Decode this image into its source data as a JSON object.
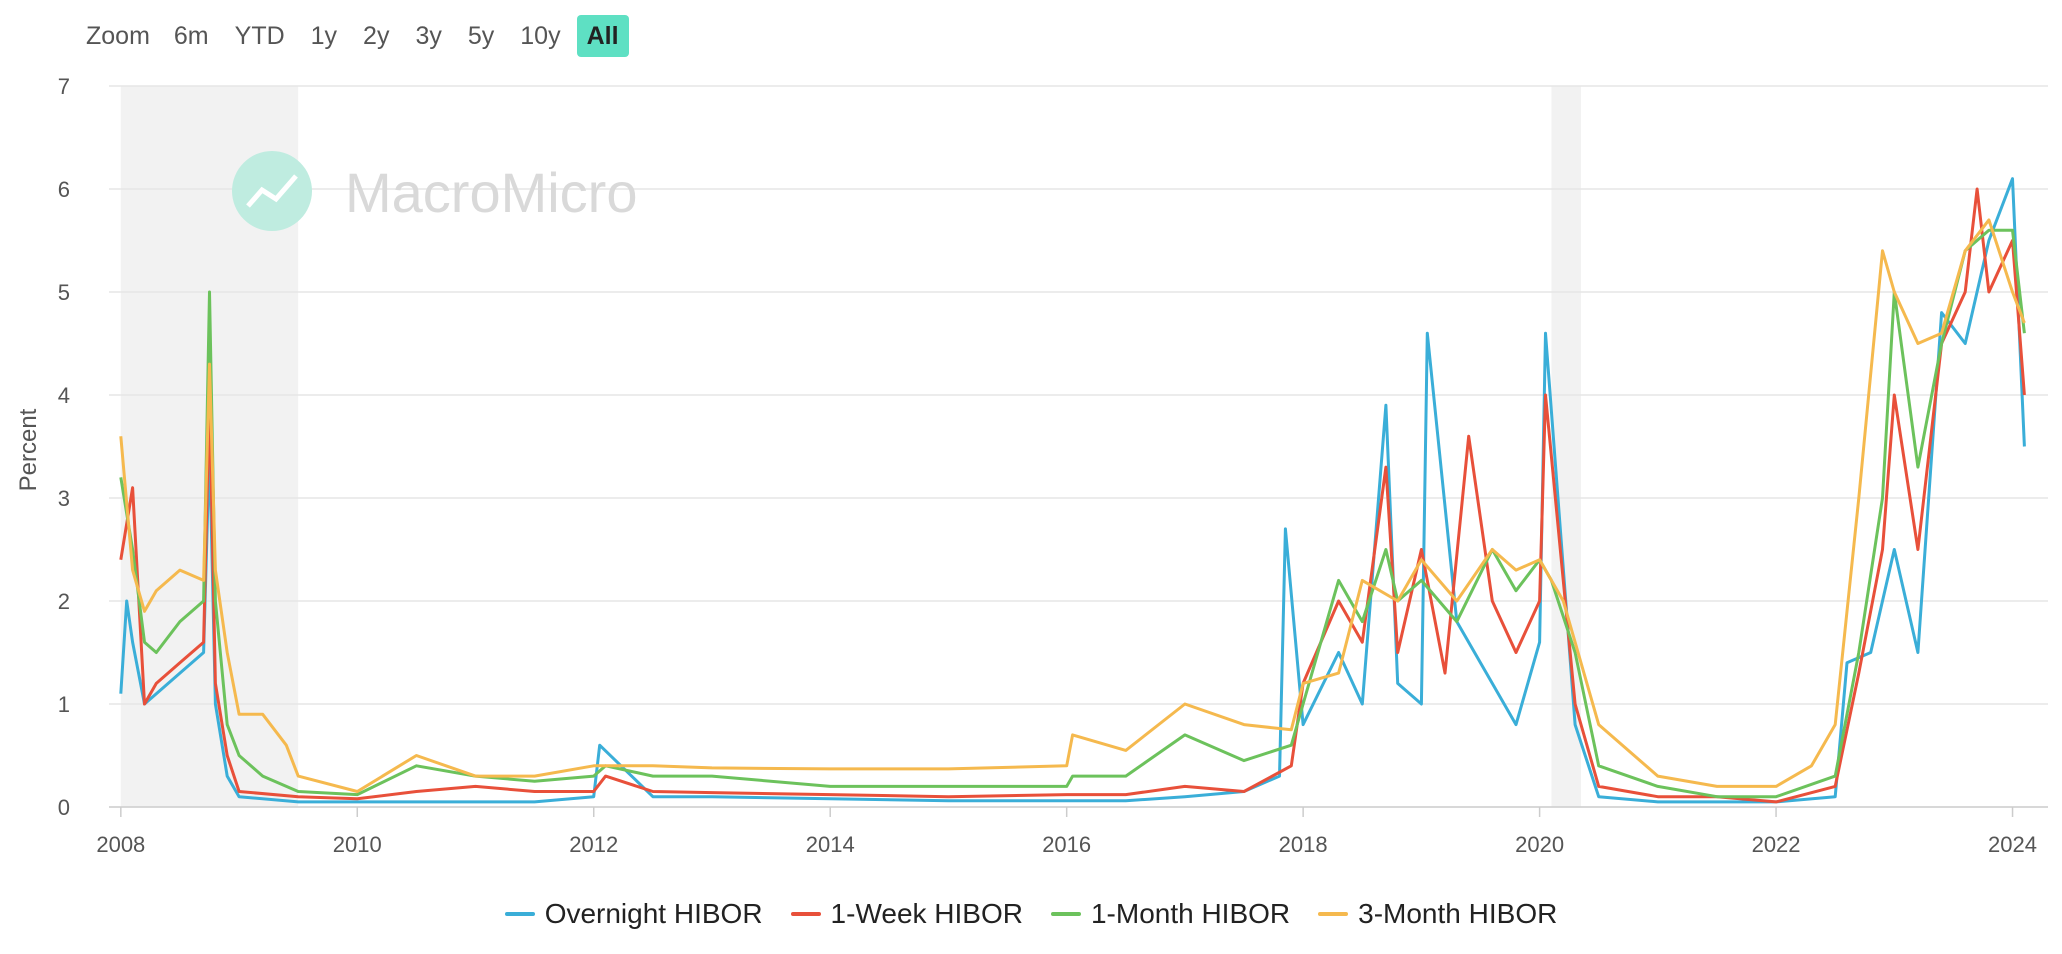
{
  "zoom": {
    "label": "Zoom",
    "buttons": [
      "6m",
      "YTD",
      "1y",
      "2y",
      "3y",
      "5y",
      "10y",
      "All"
    ],
    "active": "All"
  },
  "watermark": "MacroMicro",
  "colors": {
    "overnight": "#3aaed8",
    "week": "#e8503a",
    "month": "#6cc25c",
    "three_month": "#f5b94e",
    "accent": "#5ee0c3"
  },
  "chart_data": {
    "type": "line",
    "title": "",
    "xlabel": "",
    "ylabel": "Percent",
    "xlim": [
      2007.9,
      2024.3
    ],
    "ylim": [
      0,
      7
    ],
    "yticks": [
      0,
      1,
      2,
      3,
      4,
      5,
      6,
      7
    ],
    "xticks": [
      2008,
      2010,
      2012,
      2014,
      2016,
      2018,
      2020,
      2022,
      2024
    ],
    "recessions": [
      [
        2008.0,
        2009.5
      ],
      [
        2020.1,
        2020.35
      ]
    ],
    "grid": true,
    "legend_position": "bottom-center",
    "series": [
      {
        "name": "Overnight HIBOR",
        "color": "#3aaed8",
        "x": [
          2008.0,
          2008.05,
          2008.1,
          2008.2,
          2008.3,
          2008.5,
          2008.7,
          2008.75,
          2008.8,
          2008.9,
          2009.0,
          2009.5,
          2010.0,
          2010.5,
          2011.0,
          2011.5,
          2012.0,
          2012.05,
          2012.5,
          2013.0,
          2014.0,
          2015.0,
          2016.0,
          2016.5,
          2017.0,
          2017.5,
          2017.8,
          2017.85,
          2018.0,
          2018.3,
          2018.5,
          2018.7,
          2018.8,
          2019.0,
          2019.05,
          2019.3,
          2019.6,
          2019.8,
          2020.0,
          2020.05,
          2020.3,
          2020.5,
          2021.0,
          2021.5,
          2022.0,
          2022.5,
          2022.6,
          2022.8,
          2023.0,
          2023.2,
          2023.4,
          2023.6,
          2023.8,
          2024.0,
          2024.1
        ],
        "values": [
          1.1,
          2.0,
          1.6,
          1.0,
          1.1,
          1.3,
          1.5,
          3.5,
          1.0,
          0.3,
          0.1,
          0.05,
          0.05,
          0.05,
          0.05,
          0.05,
          0.1,
          0.6,
          0.1,
          0.1,
          0.08,
          0.06,
          0.06,
          0.06,
          0.1,
          0.15,
          0.3,
          2.7,
          0.8,
          1.5,
          1.0,
          3.9,
          1.2,
          1.0,
          4.6,
          1.8,
          1.2,
          0.8,
          1.6,
          4.6,
          0.8,
          0.1,
          0.05,
          0.05,
          0.05,
          0.1,
          1.4,
          1.5,
          2.5,
          1.5,
          4.8,
          4.5,
          5.5,
          6.1,
          3.5
        ]
      },
      {
        "name": "1-Week HIBOR",
        "color": "#e8503a",
        "x": [
          2008.0,
          2008.1,
          2008.2,
          2008.3,
          2008.5,
          2008.7,
          2008.75,
          2008.8,
          2008.9,
          2009.0,
          2009.5,
          2010.0,
          2010.5,
          2011.0,
          2011.5,
          2012.0,
          2012.1,
          2012.5,
          2013.0,
          2014.0,
          2015.0,
          2016.0,
          2016.5,
          2017.0,
          2017.5,
          2017.9,
          2018.0,
          2018.3,
          2018.5,
          2018.7,
          2018.8,
          2019.0,
          2019.2,
          2019.4,
          2019.6,
          2019.8,
          2020.0,
          2020.05,
          2020.3,
          2020.5,
          2021.0,
          2021.5,
          2022.0,
          2022.5,
          2022.7,
          2022.9,
          2023.0,
          2023.2,
          2023.4,
          2023.6,
          2023.7,
          2023.8,
          2024.0,
          2024.1
        ],
        "values": [
          2.4,
          3.1,
          1.0,
          1.2,
          1.4,
          1.6,
          4.0,
          1.2,
          0.5,
          0.15,
          0.1,
          0.08,
          0.15,
          0.2,
          0.15,
          0.15,
          0.3,
          0.15,
          0.14,
          0.12,
          0.1,
          0.12,
          0.12,
          0.2,
          0.15,
          0.4,
          1.2,
          2.0,
          1.6,
          3.3,
          1.5,
          2.5,
          1.3,
          3.6,
          2.0,
          1.5,
          2.0,
          4.0,
          1.0,
          0.2,
          0.1,
          0.1,
          0.05,
          0.2,
          1.3,
          2.5,
          4.0,
          2.5,
          4.5,
          5.0,
          6.0,
          5.0,
          5.5,
          4.0
        ]
      },
      {
        "name": "1-Month HIBOR",
        "color": "#6cc25c",
        "x": [
          2008.0,
          2008.1,
          2008.2,
          2008.3,
          2008.5,
          2008.7,
          2008.75,
          2008.8,
          2008.9,
          2009.0,
          2009.2,
          2009.5,
          2010.0,
          2010.5,
          2011.0,
          2011.5,
          2012.0,
          2012.1,
          2012.5,
          2013.0,
          2014.0,
          2015.0,
          2016.0,
          2016.05,
          2016.5,
          2017.0,
          2017.5,
          2017.9,
          2018.0,
          2018.3,
          2018.5,
          2018.7,
          2018.8,
          2019.0,
          2019.3,
          2019.6,
          2019.8,
          2020.0,
          2020.1,
          2020.3,
          2020.5,
          2021.0,
          2021.5,
          2022.0,
          2022.5,
          2022.7,
          2022.9,
          2023.0,
          2023.2,
          2023.4,
          2023.6,
          2023.8,
          2024.0,
          2024.1
        ],
        "values": [
          3.2,
          2.5,
          1.6,
          1.5,
          1.8,
          2.0,
          5.0,
          2.0,
          0.8,
          0.5,
          0.3,
          0.15,
          0.12,
          0.4,
          0.3,
          0.25,
          0.3,
          0.4,
          0.3,
          0.3,
          0.2,
          0.2,
          0.2,
          0.3,
          0.3,
          0.7,
          0.45,
          0.6,
          1.0,
          2.2,
          1.8,
          2.5,
          2.0,
          2.2,
          1.8,
          2.5,
          2.1,
          2.4,
          2.2,
          1.5,
          0.4,
          0.2,
          0.1,
          0.1,
          0.3,
          1.5,
          3.0,
          5.0,
          3.3,
          4.5,
          5.4,
          5.6,
          5.6,
          4.6
        ]
      },
      {
        "name": "3-Month HIBOR",
        "color": "#f5b94e",
        "x": [
          2008.0,
          2008.1,
          2008.2,
          2008.3,
          2008.5,
          2008.7,
          2008.75,
          2008.8,
          2008.9,
          2009.0,
          2009.2,
          2009.4,
          2009.5,
          2010.0,
          2010.5,
          2011.0,
          2011.5,
          2012.0,
          2012.5,
          2013.0,
          2014.0,
          2015.0,
          2016.0,
          2016.05,
          2016.5,
          2017.0,
          2017.5,
          2017.9,
          2018.0,
          2018.3,
          2018.5,
          2018.8,
          2019.0,
          2019.3,
          2019.6,
          2019.8,
          2020.0,
          2020.2,
          2020.5,
          2021.0,
          2021.5,
          2022.0,
          2022.3,
          2022.5,
          2022.7,
          2022.9,
          2023.0,
          2023.2,
          2023.4,
          2023.6,
          2023.8,
          2024.0,
          2024.1
        ],
        "values": [
          3.6,
          2.3,
          1.9,
          2.1,
          2.3,
          2.2,
          4.3,
          2.3,
          1.5,
          0.9,
          0.9,
          0.6,
          0.3,
          0.15,
          0.5,
          0.3,
          0.3,
          0.4,
          0.4,
          0.38,
          0.37,
          0.37,
          0.4,
          0.7,
          0.55,
          1.0,
          0.8,
          0.75,
          1.2,
          1.3,
          2.2,
          2.0,
          2.4,
          2.0,
          2.5,
          2.3,
          2.4,
          2.0,
          0.8,
          0.3,
          0.2,
          0.2,
          0.4,
          0.8,
          3.0,
          5.4,
          5.0,
          4.5,
          4.6,
          5.4,
          5.7,
          5.0,
          4.7
        ]
      }
    ]
  }
}
